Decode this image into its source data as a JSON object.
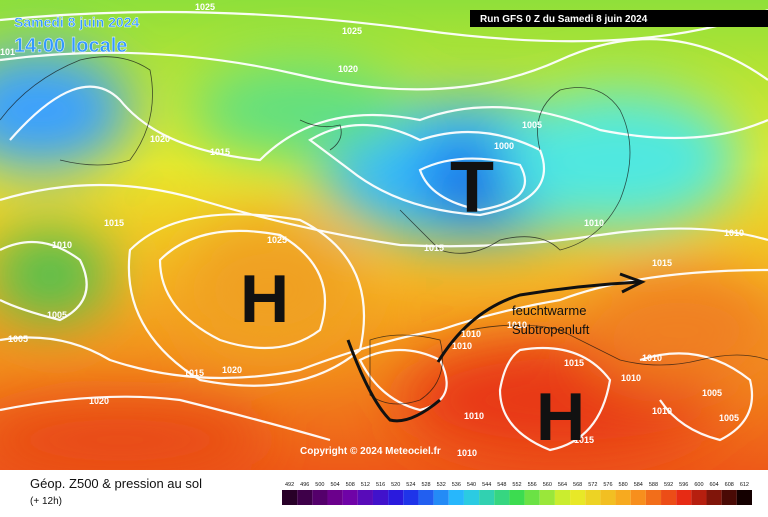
{
  "header": {
    "date": "Samedi 8 juin 2024",
    "time": "14:00 locale",
    "run": "Run GFS 0 Z du Samedi 8 juin 2024"
  },
  "centers": [
    "T",
    "H",
    "H"
  ],
  "annotation": [
    "feuchtwarme",
    "Subtropenluft"
  ],
  "isobar_labels": [
    "1025",
    "1025",
    "1020",
    "1020",
    "1015",
    "1005",
    "1000",
    "1015",
    "1010",
    "1025",
    "1015",
    "1010",
    "1010",
    "1015",
    "1005",
    "1005",
    "1010",
    "1010",
    "1010",
    "1015",
    "1020",
    "1020",
    "1015",
    "1010",
    "1010",
    "1005",
    "1005",
    "1010",
    "1010",
    "1015",
    "1010",
    "101"
  ],
  "copyright": "Copyright © 2024 Meteociel.fr",
  "footer": {
    "title": "Géop. Z500 & pression au sol",
    "subtitle": "(+ 12h)"
  },
  "legend": [
    492,
    496,
    500,
    504,
    508,
    512,
    516,
    520,
    524,
    528,
    532,
    536,
    540,
    544,
    548,
    552,
    556,
    560,
    564,
    568,
    572,
    576,
    580,
    584,
    588,
    592,
    596,
    600,
    604,
    608,
    612
  ]
}
